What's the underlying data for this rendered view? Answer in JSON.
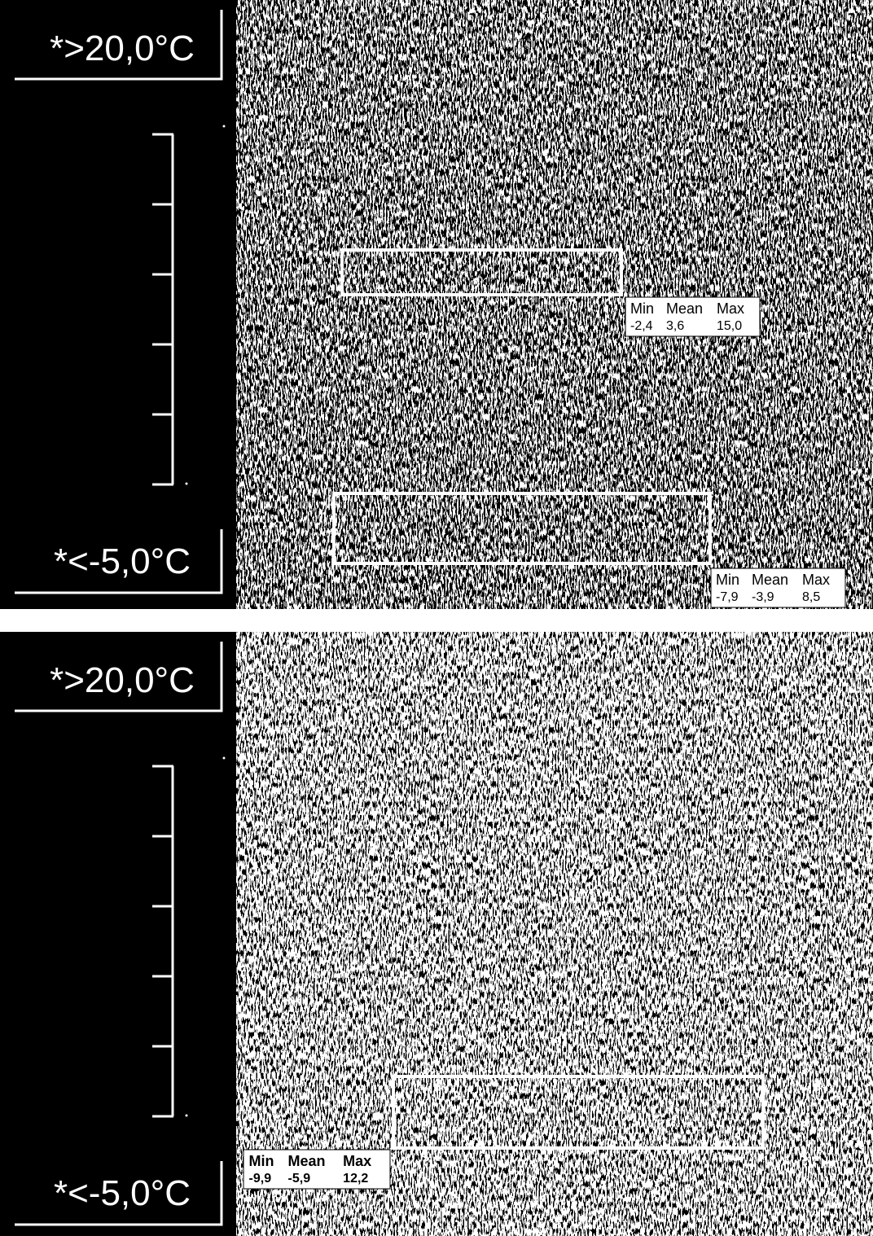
{
  "panels": [
    {
      "scale_max": "*>20,0°C",
      "scale_min": "*<-5,0°C",
      "regions": [
        {
          "headers": [
            "Min",
            "Mean",
            "Max"
          ],
          "values": [
            "-2,4",
            "3,6",
            "15,0"
          ]
        },
        {
          "headers": [
            "Min",
            "Mean",
            "Max"
          ],
          "values": [
            "-7,9",
            "-3,9",
            "8,5"
          ]
        }
      ]
    },
    {
      "scale_max": "*>20,0°C",
      "scale_min": "*<-5,0°C",
      "regions": [
        {
          "headers": [
            "Min",
            "Mean",
            "Max"
          ],
          "values": [
            "-9,9",
            "-5,9",
            "12,2"
          ]
        }
      ]
    }
  ]
}
